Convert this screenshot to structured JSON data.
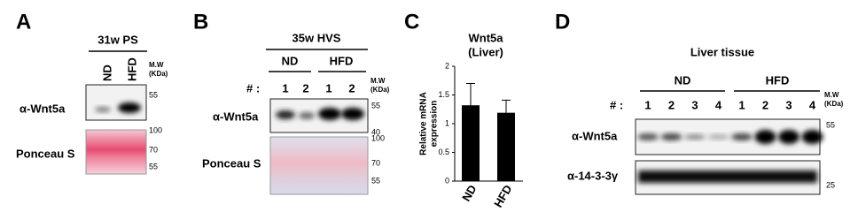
{
  "panel_a": {
    "letter": "A",
    "title": "31w PS",
    "lanes": [
      "ND",
      "HFD"
    ],
    "mw_header": [
      "M.W",
      "(KDa)"
    ],
    "rows": [
      {
        "label": "α-Wnt5a",
        "markers": [
          "55"
        ]
      },
      {
        "label": "Ponceau S",
        "markers": [
          "100",
          "70",
          "55"
        ]
      }
    ]
  },
  "panel_b": {
    "letter": "B",
    "title": "35w HVS",
    "groups": [
      "ND",
      "HFD"
    ],
    "lane_prefix": "# :",
    "lanes": [
      "1",
      "2",
      "1",
      "2"
    ],
    "mw_header": [
      "M.W",
      "(KDa)"
    ],
    "rows": [
      {
        "label": "α-Wnt5a",
        "markers": [
          "55",
          "40"
        ]
      },
      {
        "label": "Ponceau S",
        "markers": [
          "100",
          "70",
          "55"
        ]
      }
    ]
  },
  "panel_c": {
    "letter": "C"
  },
  "chart_data": {
    "type": "bar",
    "title": [
      "Wnt5a",
      "(Liver)"
    ],
    "y_label": [
      "Relative mRNA",
      "expression"
    ],
    "categories": [
      "ND",
      "HFD"
    ],
    "values": [
      1.32,
      1.19
    ],
    "errors": [
      0.38,
      0.22
    ],
    "color": "#000000",
    "ylim": [
      0,
      2
    ],
    "yticks": [
      0,
      0.5,
      1,
      1.5,
      2
    ]
  },
  "panel_d": {
    "letter": "D",
    "title": "Liver tissue",
    "groups": [
      "ND",
      "HFD"
    ],
    "lane_prefix": "# :",
    "lanes": [
      "1",
      "2",
      "3",
      "4",
      "1",
      "2",
      "3",
      "4"
    ],
    "mw_header": [
      "M.W",
      "(KDa)"
    ],
    "rows": [
      {
        "label": "α-Wnt5a",
        "markers": [
          "55"
        ]
      },
      {
        "label": "α-14-3-3γ",
        "markers": [
          "25"
        ]
      }
    ]
  }
}
